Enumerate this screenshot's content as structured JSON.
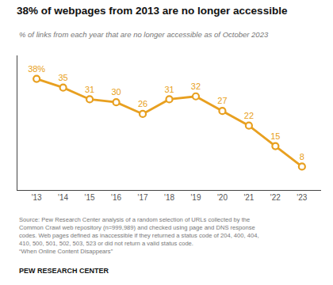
{
  "chart_data": {
    "type": "line",
    "title": "38% of webpages from 2013 are no longer accessible",
    "subtitle": "% of links from each year that are no longer accessible as of October 2023",
    "categories": [
      "'13",
      "'14",
      "'15",
      "'16",
      "'17",
      "'18",
      "'19",
      "'20",
      "'21",
      "'22",
      "'23"
    ],
    "values": [
      38,
      35,
      31,
      30,
      26,
      31,
      32,
      27,
      22,
      15,
      8
    ],
    "value_labels": [
      "38%",
      "35",
      "31",
      "30",
      "26",
      "31",
      "32",
      "27",
      "22",
      "15",
      "8"
    ],
    "data_labels": true,
    "color": "#E8A020",
    "marker": "circle-open",
    "ylim": [
      0,
      46
    ],
    "tick_labels": "x",
    "grid": false,
    "annotations": [
      "Source: Pew Research Center analysis of a random selection of URLs collected by the\nCommon Crawl web repository (n=999,989) and checked using page and DNS response\ncodes. Web pages defined as inaccessible if they returned a status code of 204, 400, 404,\n410, 500, 501, 502, 503, 523 or did not return a valid status code.\n“When Online Content Disappears”",
      "PEW RESEARCH CENTER"
    ]
  }
}
